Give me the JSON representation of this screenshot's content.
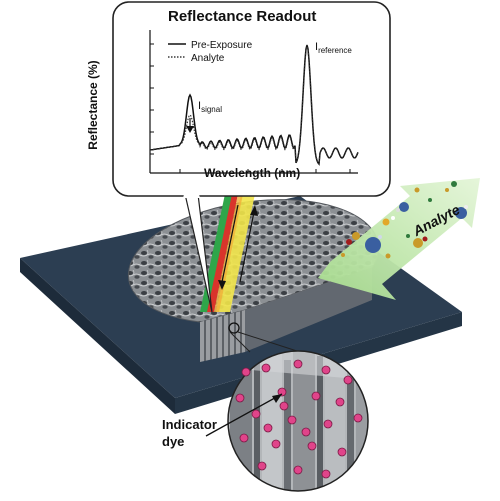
{
  "readout": {
    "title": "Reflectance Readout",
    "ylabel": "Reflectance (%)",
    "xlabel": "Wavelength (nm)",
    "legend": [
      "Pre-Exposure",
      "Analyte"
    ],
    "peak_signal_label": "I",
    "peak_signal_sub": "signal",
    "peak_reference_label": "I",
    "peak_reference_sub": "reference"
  },
  "analyte_label": "Analyte",
  "indicator_label_line1": "Indicator",
  "indicator_label_line2": "dye",
  "colors": {
    "slab_top": "#2c3e52",
    "slab_side": "#1d2b3a",
    "film": "#8a8d90",
    "arrow_green": "#bde6a6",
    "dye_dot": "#e0448a",
    "beam_yellow": "#f2e64a",
    "beam_red": "#d9342b",
    "beam_green": "#2fa64a"
  }
}
